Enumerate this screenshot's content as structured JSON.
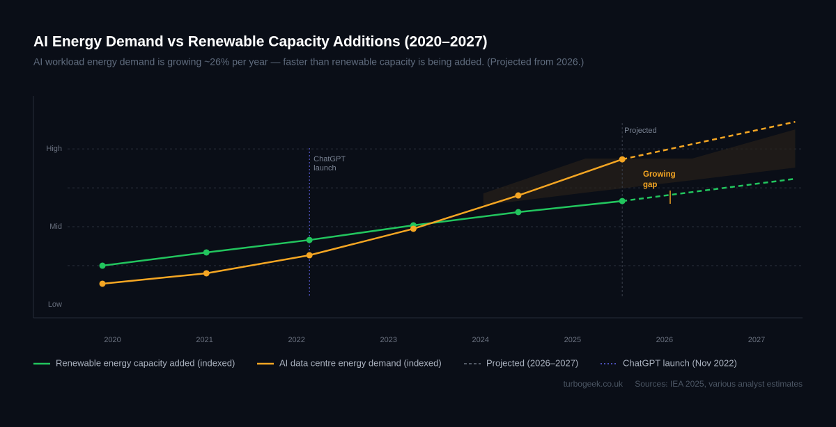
{
  "chart_data": {
    "type": "line",
    "title": "AI Energy Demand vs Renewable Capacity Additions (2020–2027)",
    "subtitle": "AI workload energy demand is growing ~26% per year — faster than renewable capacity is being added. (Projected from 2026.)",
    "x": [
      2019.89,
      2021.02,
      2022.14,
      2023.27,
      2024.41,
      2025.54,
      2027.42
    ],
    "xlim": [
      2019.14,
      2027.5
    ],
    "xticks": [
      2020,
      2021,
      2022,
      2023,
      2024,
      2025,
      2026,
      2027
    ],
    "ylim": [
      -8.5,
      134
    ],
    "yticks": [
      {
        "value": 0,
        "label": "Low"
      },
      {
        "value": 50,
        "label": "Mid"
      },
      {
        "value": 100,
        "label": "High"
      }
    ],
    "grid_lines": [
      25,
      50,
      75,
      100
    ],
    "series": [
      {
        "name": "Renewable energy capacity added (indexed)",
        "color": "#22c55e",
        "values": [
          25,
          33.5,
          41.5,
          50.9,
          59.4,
          66.5,
          80.8
        ]
      },
      {
        "name": "AI data centre energy demand (indexed)",
        "color": "#f5a623",
        "values": [
          13.4,
          20.1,
          31.7,
          48.7,
          70.1,
          93.3,
          117.4
        ]
      }
    ],
    "projection": {
      "name": "Projected (2026–2027)",
      "label": "Projected",
      "start_index": 5,
      "color": "#6b7280"
    },
    "event": {
      "name": "ChatGPT launch (Nov 2022)",
      "x": 2022.14,
      "label_lines": [
        "ChatGPT",
        "launch"
      ],
      "color": "#6366f1"
    },
    "gap_band": {
      "x": [
        2024.03,
        2025.14,
        2026.3,
        2027.42
      ],
      "upper": [
        71.4,
        93.8,
        93.8,
        112.5
      ],
      "lower": [
        63.8,
        71.9,
        79.9,
        88
      ],
      "label_lines": [
        "Growing",
        "gap"
      ],
      "color": "#f5a623"
    },
    "site": "turbogeek.co.uk",
    "sources": "Sources: IEA 2025, various analyst estimates"
  }
}
